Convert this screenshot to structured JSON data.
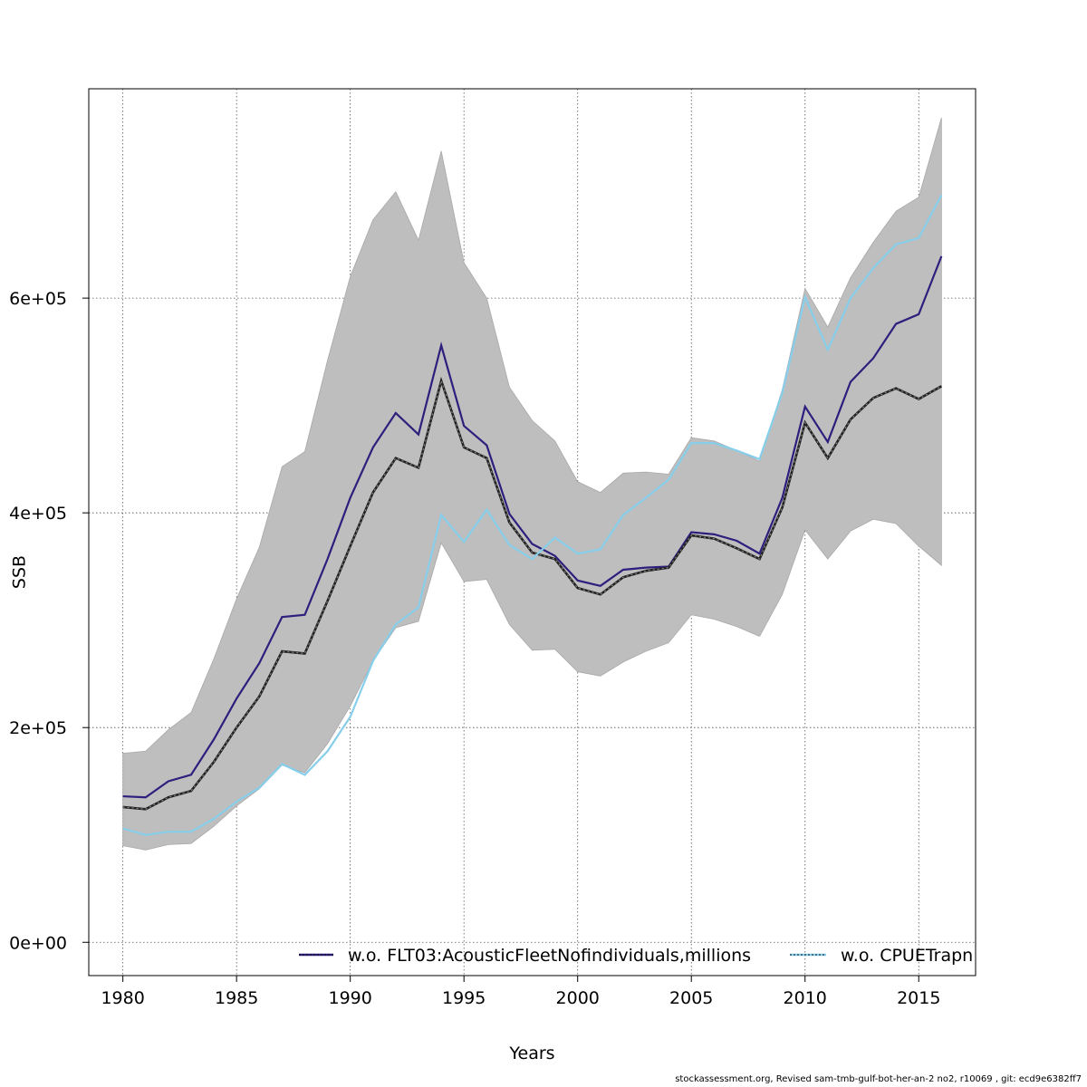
{
  "footer": "stockassessment.org, Revised  sam-tmb-gulf-bot-her-an-2  no2, r10069 , git: ecd9e6382ff7",
  "chart_data": {
    "type": "line",
    "xlabel": "Years",
    "ylabel": "SSB",
    "xlim": [
      1978.5,
      2017.5
    ],
    "ylim": [
      -31000,
      795000
    ],
    "x_ticks": [
      1980,
      1985,
      1990,
      1995,
      2000,
      2005,
      2010,
      2015
    ],
    "y_ticks": [
      0,
      200000,
      400000,
      600000
    ],
    "y_tick_labels": [
      "0e+00",
      "2e+05",
      "4e+05",
      "6e+05"
    ],
    "grid": true,
    "legend_position": "bottom",
    "x": [
      1980,
      1981,
      1982,
      1983,
      1984,
      1985,
      1986,
      1987,
      1988,
      1989,
      1990,
      1991,
      1992,
      1993,
      1994,
      1995,
      1996,
      1997,
      1998,
      1999,
      2000,
      2001,
      2002,
      2003,
      2004,
      2005,
      2006,
      2007,
      2008,
      2009,
      2010,
      2011,
      2012,
      2013,
      2014,
      2015,
      2016
    ],
    "confidence_band": {
      "color": "#bebebe",
      "upper": [
        176000,
        178000,
        198000,
        214000,
        264000,
        320000,
        368000,
        443000,
        457000,
        542000,
        620000,
        673000,
        699000,
        654000,
        737000,
        633000,
        600000,
        517000,
        486000,
        467000,
        429000,
        419000,
        437000,
        438000,
        436000,
        470000,
        467000,
        458000,
        448000,
        515000,
        609000,
        573000,
        619000,
        652000,
        681000,
        694000,
        768000
      ],
      "lower": [
        90000,
        86000,
        91000,
        92000,
        108000,
        127000,
        143000,
        165000,
        158000,
        185000,
        220000,
        262000,
        293000,
        299000,
        372000,
        336000,
        338000,
        296000,
        272000,
        273000,
        252000,
        248000,
        261000,
        271000,
        279000,
        305000,
        301000,
        294000,
        285000,
        324000,
        384000,
        357000,
        383000,
        394000,
        390000,
        369000,
        351000
      ]
    },
    "series": [
      {
        "color": "#000000",
        "dashed": true,
        "values": [
          126000,
          124000,
          135000,
          141000,
          168000,
          200000,
          229000,
          271000,
          269000,
          318000,
          369000,
          419000,
          451000,
          442000,
          523000,
          461000,
          451000,
          391000,
          363000,
          357000,
          330000,
          324000,
          340000,
          346000,
          349000,
          379000,
          376000,
          367000,
          357000,
          405000,
          484000,
          451000,
          487000,
          507000,
          516000,
          506000,
          518000
        ]
      },
      {
        "name": "w.o. FLT03:AcousticFleetNofindividuals,millions",
        "color": "#2c1f7d",
        "values": [
          136000,
          135000,
          150000,
          156000,
          189000,
          227000,
          260000,
          303000,
          305000,
          357000,
          414000,
          461000,
          493000,
          473000,
          556000,
          481000,
          463000,
          399000,
          371000,
          360000,
          337000,
          332000,
          347000,
          349000,
          350000,
          382000,
          380000,
          374000,
          362000,
          414000,
          499000,
          466000,
          522000,
          544000,
          576000,
          585000,
          639000
        ]
      },
      {
        "name": "w.o. CPUETrapn",
        "color": "#87ceeb",
        "values": [
          106000,
          100000,
          103000,
          103000,
          115000,
          131000,
          144000,
          166000,
          156000,
          178000,
          210000,
          262000,
          296000,
          312000,
          398000,
          373000,
          403000,
          370000,
          357000,
          377000,
          362000,
          366000,
          398000,
          414000,
          431000,
          465000,
          465000,
          458000,
          450000,
          512000,
          601000,
          552000,
          600000,
          628000,
          650000,
          656000,
          696000
        ]
      }
    ]
  }
}
